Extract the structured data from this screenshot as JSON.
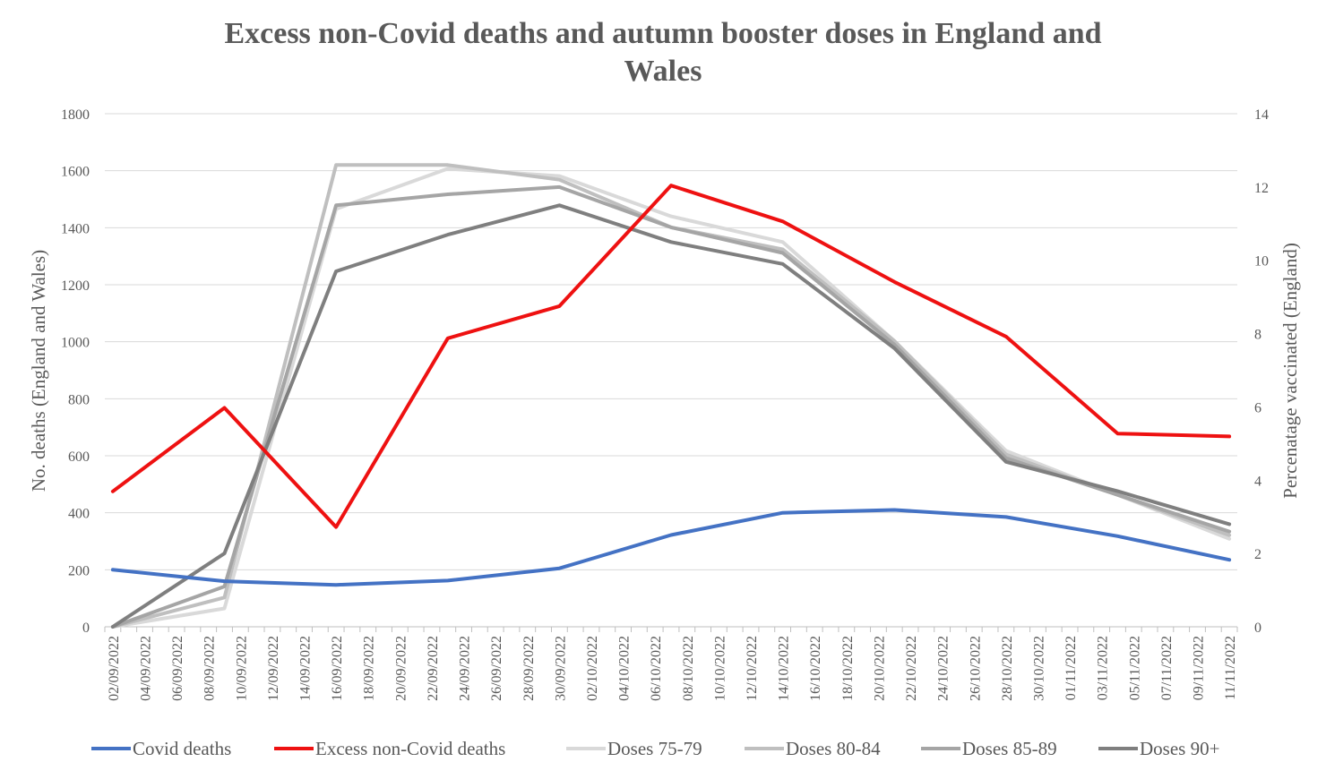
{
  "chart_data": {
    "type": "line",
    "title_lines": [
      "Excess non-Covid deaths and autumn booster doses in England and",
      "Wales"
    ],
    "ylabel": "No. deaths (England and Wales)",
    "y2label": "Percenatage vaccinated (England)",
    "ylim": [
      0,
      1800
    ],
    "y2lim": [
      0,
      14
    ],
    "yticks": [
      0,
      200,
      400,
      600,
      800,
      1000,
      1200,
      1400,
      1600,
      1800
    ],
    "y2ticks": [
      0,
      2,
      4,
      6,
      8,
      10,
      12,
      14
    ],
    "categories": [
      "02/09/2022",
      "03/09/2022",
      "04/09/2022",
      "05/09/2022",
      "06/09/2022",
      "07/09/2022",
      "08/09/2022",
      "09/09/2022",
      "10/09/2022",
      "11/09/2022",
      "12/09/2022",
      "13/09/2022",
      "14/09/2022",
      "15/09/2022",
      "16/09/2022",
      "17/09/2022",
      "18/09/2022",
      "19/09/2022",
      "20/09/2022",
      "21/09/2022",
      "22/09/2022",
      "23/09/2022",
      "24/09/2022",
      "25/09/2022",
      "26/09/2022",
      "27/09/2022",
      "28/09/2022",
      "29/09/2022",
      "30/09/2022",
      "01/10/2022",
      "02/10/2022",
      "03/10/2022",
      "04/10/2022",
      "05/10/2022",
      "06/10/2022",
      "07/10/2022",
      "08/10/2022",
      "09/10/2022",
      "10/10/2022",
      "11/10/2022",
      "12/10/2022",
      "13/10/2022",
      "14/10/2022",
      "15/10/2022",
      "16/10/2022",
      "17/10/2022",
      "18/10/2022",
      "19/10/2022",
      "20/10/2022",
      "21/10/2022",
      "22/10/2022",
      "23/10/2022",
      "24/10/2022",
      "25/10/2022",
      "26/10/2022",
      "27/10/2022",
      "28/10/2022",
      "29/10/2022",
      "30/10/2022",
      "31/10/2022",
      "01/11/2022",
      "02/11/2022",
      "03/11/2022",
      "04/11/2022",
      "05/11/2022",
      "06/11/2022",
      "07/11/2022",
      "08/11/2022",
      "09/11/2022",
      "10/11/2022",
      "11/11/2022"
    ],
    "xtick_labels": [
      "02/09/2022",
      "04/09/2022",
      "06/09/2022",
      "08/09/2022",
      "10/09/2022",
      "12/09/2022",
      "14/09/2022",
      "16/09/2022",
      "18/09/2022",
      "20/09/2022",
      "22/09/2022",
      "24/09/2022",
      "26/09/2022",
      "28/09/2022",
      "30/09/2022",
      "02/10/2022",
      "04/10/2022",
      "06/10/2022",
      "08/10/2022",
      "10/10/2022",
      "12/10/2022",
      "14/10/2022",
      "16/10/2022",
      "18/10/2022",
      "20/10/2022",
      "22/10/2022",
      "24/10/2022",
      "26/10/2022",
      "28/10/2022",
      "30/10/2022",
      "01/11/2022",
      "03/11/2022",
      "05/11/2022",
      "07/11/2022",
      "09/11/2022",
      "11/11/2022"
    ],
    "series": [
      {
        "name": "Covid deaths",
        "axis": "left",
        "color": "#4472C4",
        "x": [
          "02/09/2022",
          "09/09/2022",
          "16/09/2022",
          "23/09/2022",
          "30/09/2022",
          "07/10/2022",
          "14/10/2022",
          "21/10/2022",
          "28/10/2022",
          "04/11/2022",
          "11/11/2022"
        ],
        "values": [
          200,
          160,
          147,
          162,
          205,
          322,
          400,
          410,
          385,
          318,
          235
        ]
      },
      {
        "name": "Excess non-Covid deaths",
        "axis": "left",
        "color": "#EE1111",
        "x": [
          "02/09/2022",
          "09/09/2022",
          "16/09/2022",
          "23/09/2022",
          "30/09/2022",
          "07/10/2022",
          "14/10/2022",
          "21/10/2022",
          "28/10/2022",
          "04/11/2022",
          "11/11/2022"
        ],
        "values": [
          475,
          768,
          350,
          1012,
          1125,
          1548,
          1422,
          1210,
          1018,
          678,
          668
        ]
      },
      {
        "name": "Doses 75-79",
        "axis": "right",
        "color": "#D9D9D9",
        "x": [
          "02/09/2022",
          "09/09/2022",
          "16/09/2022",
          "23/09/2022",
          "30/09/2022",
          "07/10/2022",
          "14/10/2022",
          "21/10/2022",
          "28/10/2022",
          "04/11/2022",
          "11/11/2022"
        ],
        "values": [
          0,
          0.5,
          11.4,
          12.5,
          12.3,
          11.2,
          10.5,
          7.8,
          4.8,
          3.6,
          2.4
        ]
      },
      {
        "name": "Doses 80-84",
        "axis": "right",
        "color": "#BFBFBF",
        "x": [
          "02/09/2022",
          "09/09/2022",
          "16/09/2022",
          "23/09/2022",
          "30/09/2022",
          "07/10/2022",
          "14/10/2022",
          "21/10/2022",
          "28/10/2022",
          "04/11/2022",
          "11/11/2022"
        ],
        "values": [
          0,
          0.8,
          12.6,
          12.6,
          12.2,
          10.9,
          10.3,
          7.8,
          4.7,
          3.6,
          2.5
        ]
      },
      {
        "name": "Doses 85-89",
        "axis": "right",
        "color": "#A5A5A5",
        "x": [
          "02/09/2022",
          "09/09/2022",
          "16/09/2022",
          "23/09/2022",
          "30/09/2022",
          "07/10/2022",
          "14/10/2022",
          "21/10/2022",
          "28/10/2022",
          "04/11/2022",
          "11/11/2022"
        ],
        "values": [
          0,
          1.1,
          11.5,
          11.8,
          12.0,
          10.9,
          10.2,
          7.7,
          4.6,
          3.6,
          2.6
        ]
      },
      {
        "name": "Doses 90+",
        "axis": "right",
        "color": "#7F7F7F",
        "x": [
          "02/09/2022",
          "09/09/2022",
          "16/09/2022",
          "23/09/2022",
          "30/09/2022",
          "07/10/2022",
          "14/10/2022",
          "21/10/2022",
          "28/10/2022",
          "04/11/2022",
          "11/11/2022"
        ],
        "values": [
          0,
          2.0,
          9.7,
          10.7,
          11.5,
          10.5,
          9.9,
          7.6,
          4.5,
          3.7,
          2.8
        ]
      }
    ],
    "grid": true,
    "legend": "bottom"
  }
}
